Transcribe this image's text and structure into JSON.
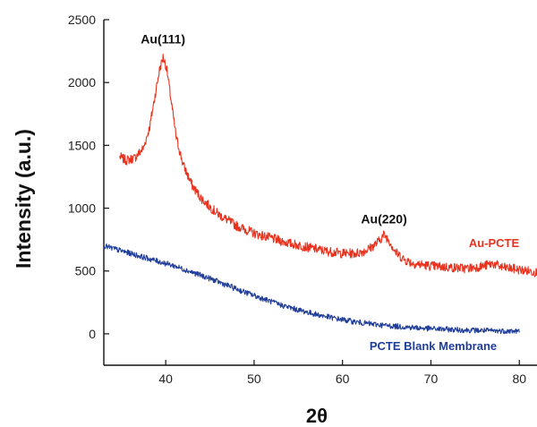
{
  "chart_data": {
    "type": "line",
    "title": "",
    "xlabel": "2θ",
    "ylabel": "Intensity (a.u.)",
    "xlim": [
      33,
      82
    ],
    "ylim": [
      -250,
      2500
    ],
    "xticks": [
      40,
      50,
      60,
      70,
      80
    ],
    "yticks": [
      0,
      500,
      1000,
      1500,
      2000,
      2500
    ],
    "grid": false,
    "annotations": [
      {
        "text": "Au(111)",
        "x": 39.7,
        "y": 2310
      },
      {
        "text": "Au(220)",
        "x": 64.7,
        "y": 880
      }
    ],
    "series": [
      {
        "name": "Au-PCTE",
        "color": "#e8321e",
        "x": [
          34.8,
          35.5,
          36.5,
          37.5,
          38.2,
          38.8,
          39.3,
          39.7,
          40.1,
          40.6,
          41.2,
          42.0,
          43.0,
          44.0,
          45.0,
          46.0,
          48.0,
          50.0,
          52.0,
          54.0,
          56.0,
          58.0,
          60.0,
          61.5,
          62.5,
          63.3,
          64.0,
          64.7,
          65.3,
          66.0,
          67.0,
          68.0,
          70.0,
          72.0,
          74.0,
          76.0,
          77.0,
          78.0,
          80.0,
          82.0
        ],
        "y": [
          1410,
          1380,
          1400,
          1480,
          1650,
          1900,
          2100,
          2200,
          2120,
          1860,
          1560,
          1340,
          1180,
          1080,
          1010,
          950,
          860,
          800,
          760,
          720,
          690,
          660,
          640,
          640,
          660,
          690,
          730,
          790,
          740,
          650,
          590,
          560,
          540,
          530,
          520,
          540,
          560,
          530,
          510,
          490
        ]
      },
      {
        "name": "PCTE Blank Membrane",
        "color": "#1f3d99",
        "x": [
          33,
          35,
          37,
          39,
          41,
          43,
          45,
          47,
          49,
          51,
          53,
          55,
          57,
          59,
          61,
          63,
          65,
          67,
          69,
          71,
          73,
          75,
          77,
          79,
          80
        ],
        "y": [
          700,
          660,
          620,
          580,
          540,
          490,
          440,
          385,
          330,
          280,
          230,
          190,
          155,
          125,
          100,
          80,
          65,
          55,
          45,
          38,
          32,
          28,
          24,
          22,
          20
        ]
      }
    ],
    "series_labels": [
      "Au-PCTE",
      "PCTE Blank Membrane"
    ]
  }
}
